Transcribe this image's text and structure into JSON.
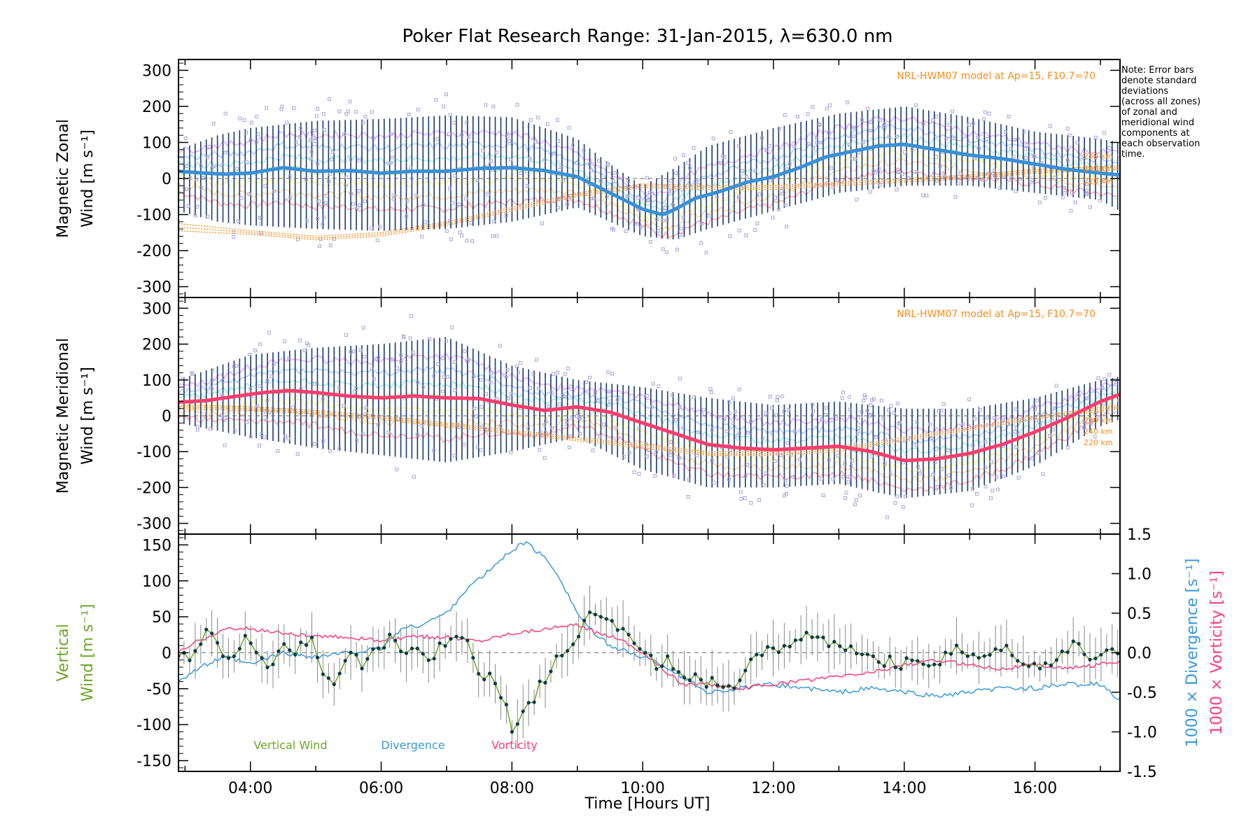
{
  "figure": {
    "title": "Poker Flat Research Range: 31-Jan-2015, λ=630.0 nm",
    "note": "Note: Error bars denote standard deviations (across all zones) of zonal and meridional wind components at each observation time.",
    "note_lines": [
      "Note: Error bars",
      "denote standard",
      "deviations",
      "(across all zones)",
      "of zonal and",
      "meridional wind",
      "components at",
      "each observation",
      "time."
    ],
    "xlabel": "Time [Hours UT]",
    "xticks": [
      "04:00",
      "06:00",
      "08:00",
      "10:00",
      "12:00",
      "14:00",
      "16:00"
    ],
    "colors": {
      "zonal_mean": "#3a8fd8",
      "meridional_mean": "#ff3d6e",
      "model": "#ff8a1a",
      "error_bar": "#1a3a70",
      "scatter_box": "#a8a4dc",
      "vertical": "#6aa82a",
      "divergence": "#3a9ad8",
      "vorticity": "#ff3d7a",
      "vertical_marker": "#0f3a45"
    }
  },
  "chart_data": [
    {
      "type": "line",
      "panel": "zonal",
      "ylabel_line1": "Magnetic Zonal",
      "ylabel_line2": "Wind [m s⁻¹]",
      "model_label": "NRL-HWM07 model at Ap=15, F10.7=70",
      "model_alt_labels": [
        "250 km",
        "240 km",
        "220 km"
      ],
      "ylim": [
        -330,
        330
      ],
      "yticks": [
        300,
        200,
        100,
        0,
        -100,
        -200,
        -300
      ],
      "xlim": [
        2.9,
        17.3
      ],
      "series": [
        {
          "role": "mean",
          "x": [
            2.9,
            3.3,
            3.6,
            4.0,
            4.5,
            5.0,
            5.5,
            6.0,
            6.5,
            7.0,
            7.5,
            8.0,
            8.5,
            9.0,
            9.5,
            10.0,
            10.3,
            10.5,
            10.8,
            11.2,
            11.6,
            12.0,
            12.4,
            12.8,
            13.2,
            13.6,
            14.0,
            14.5,
            15.0,
            15.5,
            16.0,
            16.5,
            17.0,
            17.3
          ],
          "values": [
            20,
            15,
            12,
            15,
            30,
            20,
            22,
            15,
            20,
            20,
            28,
            30,
            22,
            5,
            -40,
            -85,
            -100,
            -85,
            -55,
            -35,
            -10,
            5,
            30,
            60,
            75,
            90,
            95,
            80,
            65,
            55,
            40,
            25,
            15,
            10
          ]
        },
        {
          "role": "std_low",
          "x": [
            2.9,
            3.5,
            4.0,
            5.0,
            6.0,
            7.0,
            8.0,
            9.0,
            9.5,
            10.0,
            10.5,
            11.0,
            12.0,
            13.0,
            14.0,
            15.0,
            16.0,
            17.0,
            17.3
          ],
          "values": [
            -90,
            -120,
            -130,
            -140,
            -145,
            -140,
            -120,
            -80,
            -120,
            -160,
            -170,
            -140,
            -90,
            -40,
            -20,
            -20,
            -40,
            -60,
            -90
          ]
        },
        {
          "role": "std_high",
          "x": [
            2.9,
            3.5,
            4.0,
            5.0,
            6.0,
            7.0,
            8.0,
            9.0,
            9.5,
            10.0,
            10.5,
            11.0,
            12.0,
            13.0,
            14.0,
            15.0,
            16.0,
            17.0,
            17.3
          ],
          "values": [
            80,
            120,
            140,
            160,
            165,
            175,
            170,
            110,
            40,
            -20,
            30,
            90,
            140,
            180,
            200,
            170,
            130,
            110,
            100
          ]
        },
        {
          "role": "model_250km",
          "x": [
            2.9,
            4.0,
            5.0,
            6.0,
            7.0,
            8.0,
            9.0,
            10.0,
            11.0,
            12.0,
            13.0,
            14.0,
            15.0,
            16.0,
            17.3
          ],
          "values": [
            -125,
            -145,
            -160,
            -150,
            -120,
            -80,
            -40,
            -15,
            -20,
            -20,
            -10,
            0,
            10,
            25,
            35
          ]
        },
        {
          "role": "model_240km",
          "x": [
            2.9,
            4.0,
            5.0,
            6.0,
            7.0,
            8.0,
            9.0,
            10.0,
            11.0,
            12.0,
            13.0,
            14.0,
            15.0,
            16.0,
            17.3
          ],
          "values": [
            -135,
            -150,
            -165,
            -155,
            -125,
            -85,
            -45,
            -20,
            -25,
            -25,
            -15,
            -5,
            5,
            20,
            30
          ]
        },
        {
          "role": "model_220km",
          "x": [
            2.9,
            4.0,
            5.0,
            6.0,
            7.0,
            8.0,
            9.0,
            10.0,
            11.0,
            12.0,
            13.0,
            14.0,
            15.0,
            16.0,
            17.3
          ],
          "values": [
            -145,
            -155,
            -170,
            -160,
            -130,
            -90,
            -50,
            -25,
            -30,
            -30,
            -20,
            -10,
            0,
            15,
            25
          ]
        }
      ]
    },
    {
      "type": "line",
      "panel": "meridional",
      "ylabel_line1": "Magnetic Meridional",
      "ylabel_line2": "Wind [m s⁻¹]",
      "model_label": "NRL-HWM07 model at Ap=15, F10.7=70",
      "model_alt_labels": [
        "250 km",
        "240 km",
        "220 km"
      ],
      "ylim": [
        -330,
        330
      ],
      "yticks": [
        300,
        200,
        100,
        0,
        -100,
        -200,
        -300
      ],
      "xlim": [
        2.9,
        17.3
      ],
      "series": [
        {
          "role": "mean",
          "x": [
            2.9,
            3.3,
            3.8,
            4.2,
            4.6,
            5.0,
            5.5,
            6.0,
            6.5,
            7.0,
            7.5,
            8.0,
            8.5,
            9.0,
            9.5,
            10.0,
            10.5,
            11.0,
            11.5,
            12.0,
            12.5,
            13.0,
            13.5,
            14.0,
            14.5,
            15.0,
            15.5,
            16.0,
            16.5,
            17.0,
            17.3
          ],
          "values": [
            38,
            42,
            55,
            65,
            70,
            65,
            55,
            50,
            55,
            50,
            48,
            30,
            15,
            25,
            10,
            -20,
            -50,
            -80,
            -90,
            -95,
            -90,
            -85,
            -100,
            -125,
            -120,
            -105,
            -80,
            -45,
            -5,
            40,
            60
          ]
        },
        {
          "role": "std_low",
          "x": [
            2.9,
            4.0,
            5.0,
            6.0,
            7.0,
            8.0,
            9.0,
            10.0,
            11.0,
            12.0,
            13.0,
            14.0,
            15.0,
            16.0,
            17.0,
            17.3
          ],
          "values": [
            -20,
            -60,
            -90,
            -110,
            -130,
            -100,
            -60,
            -150,
            -200,
            -200,
            -190,
            -230,
            -210,
            -140,
            -30,
            -10
          ]
        },
        {
          "role": "std_high",
          "x": [
            2.9,
            4.0,
            5.0,
            6.0,
            7.0,
            8.0,
            9.0,
            10.0,
            11.0,
            12.0,
            13.0,
            14.0,
            15.0,
            16.0,
            17.0,
            17.3
          ],
          "values": [
            100,
            170,
            190,
            200,
            220,
            140,
            100,
            80,
            50,
            30,
            40,
            20,
            20,
            50,
            100,
            110
          ]
        },
        {
          "role": "model_250km",
          "x": [
            2.9,
            4.0,
            5.0,
            6.0,
            7.0,
            8.0,
            9.0,
            10.0,
            11.0,
            12.0,
            13.0,
            14.0,
            15.0,
            16.0,
            17.3
          ],
          "values": [
            30,
            25,
            15,
            0,
            -20,
            -40,
            -60,
            -80,
            -100,
            -100,
            -90,
            -60,
            -30,
            0,
            30
          ]
        },
        {
          "role": "model_240km",
          "x": [
            2.9,
            4.0,
            5.0,
            6.0,
            7.0,
            8.0,
            9.0,
            10.0,
            11.0,
            12.0,
            13.0,
            14.0,
            15.0,
            16.0,
            17.3
          ],
          "values": [
            25,
            20,
            10,
            -5,
            -25,
            -45,
            -65,
            -85,
            -105,
            -105,
            -95,
            -65,
            -35,
            -5,
            25
          ]
        },
        {
          "role": "model_220km",
          "x": [
            2.9,
            4.0,
            5.0,
            6.0,
            7.0,
            8.0,
            9.0,
            10.0,
            11.0,
            12.0,
            13.0,
            14.0,
            15.0,
            16.0,
            17.3
          ],
          "values": [
            20,
            15,
            5,
            -10,
            -30,
            -50,
            -70,
            -90,
            -110,
            -110,
            -100,
            -70,
            -40,
            -10,
            20
          ]
        }
      ]
    },
    {
      "type": "line",
      "panel": "vertical",
      "ylabel_line1": "Vertical",
      "ylabel_line2": "Wind [m s⁻¹]",
      "ylabel_right_divergence": "1000 × Divergence [s⁻¹]",
      "ylabel_right_vorticity": "1000 × Vorticity [s⁻¹]",
      "legend": [
        "Vertical Wind",
        "Divergence",
        "Vorticity"
      ],
      "legend_position": "bottom-left",
      "ylim": [
        -165,
        165
      ],
      "yticks": [
        150,
        100,
        50,
        0,
        -50,
        -100,
        -150
      ],
      "ylim_right": [
        -1.5,
        1.5
      ],
      "yticks_right": [
        "1.5",
        "1.0",
        "0.5",
        "0.0",
        "-0.5",
        "-1.0",
        "-1.5"
      ],
      "xlim": [
        2.9,
        17.3
      ],
      "series": [
        {
          "name": "Vertical Wind",
          "x": [
            2.9,
            3.1,
            3.3,
            3.5,
            3.7,
            3.9,
            4.1,
            4.3,
            4.5,
            4.7,
            4.9,
            5.1,
            5.3,
            5.5,
            5.7,
            5.9,
            6.1,
            6.3,
            6.5,
            6.7,
            6.9,
            7.1,
            7.3,
            7.5,
            7.7,
            7.9,
            8.0,
            8.2,
            8.4,
            8.6,
            8.8,
            9.0,
            9.2,
            9.4,
            9.6,
            9.8,
            10.0,
            10.2,
            10.4,
            10.6,
            10.8,
            11.0,
            11.2,
            11.4,
            11.6,
            11.8,
            12.0,
            12.2,
            12.4,
            12.6,
            12.8,
            13.0,
            13.2,
            13.4,
            13.6,
            13.8,
            14.0,
            14.2,
            14.4,
            14.6,
            14.8,
            15.0,
            15.2,
            15.4,
            15.6,
            15.8,
            16.0,
            16.2,
            16.4,
            16.6,
            16.8,
            17.0,
            17.3
          ],
          "values": [
            0,
            -20,
            30,
            10,
            -10,
            20,
            0,
            -15,
            10,
            -5,
            25,
            -20,
            -55,
            10,
            -15,
            0,
            20,
            5,
            10,
            -10,
            5,
            25,
            20,
            -25,
            -40,
            -70,
            -110,
            -85,
            -50,
            -20,
            0,
            20,
            55,
            60,
            40,
            15,
            5,
            -15,
            -10,
            -30,
            -30,
            -40,
            -45,
            -55,
            -20,
            -5,
            5,
            15,
            20,
            30,
            15,
            10,
            5,
            -5,
            -10,
            -10,
            -15,
            -20,
            -15,
            -5,
            10,
            0,
            -5,
            10,
            0,
            -10,
            -15,
            -20,
            0,
            10,
            -5,
            0,
            5
          ]
        },
        {
          "name": "Divergence",
          "x": [
            2.9,
            3.2,
            3.6,
            4.0,
            4.5,
            5.0,
            5.5,
            6.0,
            6.3,
            6.6,
            7.0,
            7.3,
            7.6,
            8.0,
            8.2,
            8.5,
            8.7,
            9.0,
            9.3,
            9.6,
            10.0,
            10.3,
            10.6,
            11.0,
            11.5,
            12.0,
            12.5,
            13.0,
            13.5,
            14.0,
            14.5,
            15.0,
            15.5,
            16.0,
            16.5,
            17.0,
            17.3
          ],
          "values": [
            -0.35,
            -0.2,
            -0.05,
            -0.15,
            0.0,
            -0.05,
            0.0,
            0.05,
            0.3,
            0.35,
            0.5,
            0.8,
            1.0,
            1.3,
            1.4,
            1.2,
            1.0,
            0.5,
            0.2,
            0.05,
            -0.05,
            -0.15,
            -0.3,
            -0.5,
            -0.45,
            -0.4,
            -0.45,
            -0.5,
            -0.45,
            -0.5,
            -0.55,
            -0.5,
            -0.45,
            -0.45,
            -0.4,
            -0.4,
            -0.6
          ]
        },
        {
          "name": "Vorticity",
          "x": [
            2.9,
            3.2,
            3.6,
            4.0,
            4.5,
            5.0,
            5.5,
            6.0,
            6.5,
            7.0,
            7.5,
            8.0,
            8.5,
            9.0,
            9.3,
            9.6,
            10.0,
            10.3,
            10.6,
            11.0,
            11.5,
            12.0,
            12.5,
            13.0,
            13.5,
            14.0,
            14.5,
            15.0,
            15.5,
            16.0,
            16.5,
            17.0,
            17.3
          ],
          "values": [
            0.0,
            0.15,
            0.3,
            0.3,
            0.25,
            0.2,
            0.2,
            0.15,
            0.2,
            0.2,
            0.15,
            0.25,
            0.3,
            0.35,
            0.25,
            0.2,
            0.0,
            -0.2,
            -0.4,
            -0.4,
            -0.45,
            -0.4,
            -0.35,
            -0.3,
            -0.25,
            -0.15,
            -0.1,
            -0.15,
            -0.2,
            -0.15,
            -0.2,
            -0.15,
            -0.1
          ]
        }
      ]
    }
  ]
}
